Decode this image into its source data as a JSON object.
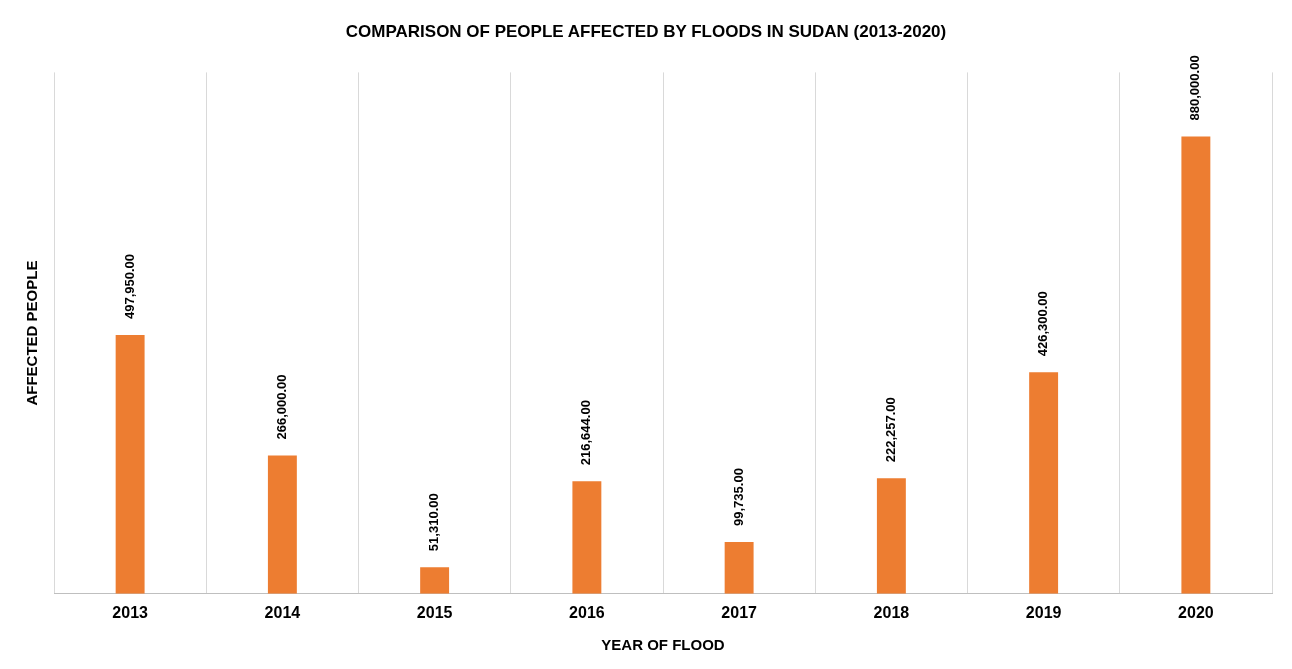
{
  "chart_data": {
    "type": "bar",
    "title": "COMPARISON OF PEOPLE AFFECTED BY FLOODS IN SUDAN (2013-2020)",
    "xlabel": "YEAR OF FLOOD",
    "ylabel": "AFFECTED PEOPLE",
    "categories": [
      "2013",
      "2014",
      "2015",
      "2016",
      "2017",
      "2018",
      "2019",
      "2020"
    ],
    "values": [
      497950,
      266000,
      51310,
      216644,
      99735,
      222257,
      426300,
      880000
    ],
    "value_labels": [
      "497,950.00",
      "266,000.00",
      "51,310.00",
      "216,644.00",
      "99,735.00",
      "222,257.00",
      "426,300.00",
      "880,000.00"
    ],
    "color": "#ed7d31",
    "tick_labels": "x",
    "grid": "x",
    "legend": false
  }
}
